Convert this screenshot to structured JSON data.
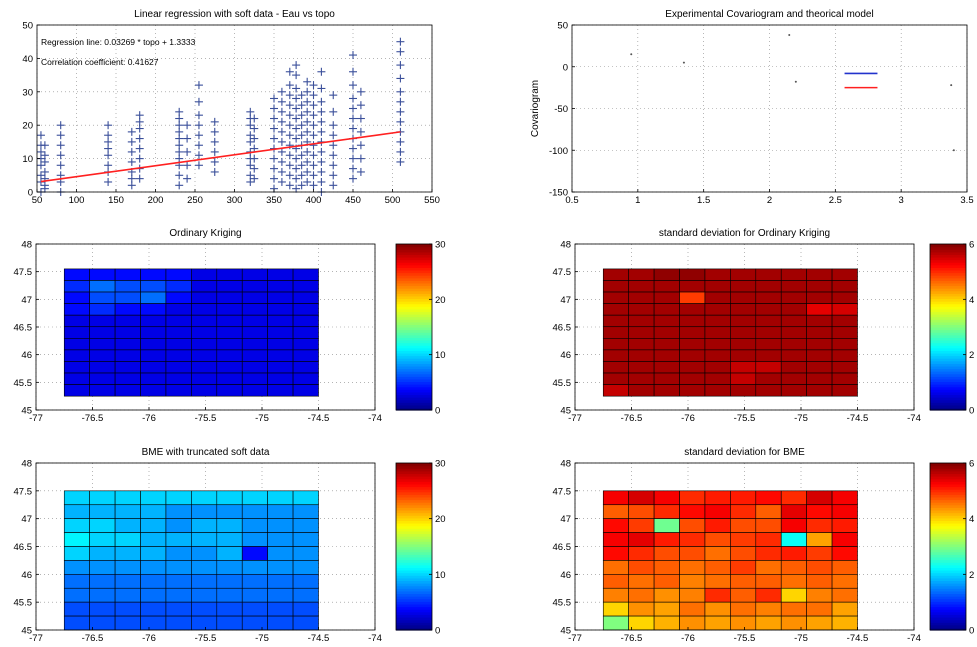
{
  "chart_data": [
    {
      "type": "scatter",
      "title": "Linear regression with soft data - Eau vs topo",
      "annotations": [
        "Regression line: 0.03269 * topo + 1.3333",
        "Correlation coefficient: 0.41627"
      ],
      "xlim": [
        50,
        550
      ],
      "ylim": [
        0,
        50
      ],
      "xticks": [
        50,
        100,
        150,
        200,
        250,
        300,
        350,
        400,
        450,
        500,
        550
      ],
      "yticks": [
        0,
        10,
        20,
        30,
        40,
        50
      ],
      "marker": "+",
      "marker_color": "#3a4f9a",
      "line_color": "#ff2020",
      "regression": {
        "slope": 0.03269,
        "intercept": 1.3333
      },
      "columns": [
        {
          "x": 55,
          "y": [
            0,
            3,
            5,
            8,
            10,
            12,
            14,
            17
          ]
        },
        {
          "x": 60,
          "y": [
            1,
            2,
            4,
            6,
            9,
            11,
            14
          ]
        },
        {
          "x": 80,
          "y": [
            0,
            3,
            5,
            8,
            11,
            14,
            17,
            20
          ]
        },
        {
          "x": 140,
          "y": [
            3,
            6,
            8,
            11,
            13,
            15,
            17,
            20
          ]
        },
        {
          "x": 170,
          "y": [
            2,
            4,
            6,
            9,
            12,
            15,
            18
          ]
        },
        {
          "x": 180,
          "y": [
            4,
            7,
            10,
            13,
            16,
            19,
            21,
            23
          ]
        },
        {
          "x": 230,
          "y": [
            2,
            5,
            8,
            10,
            12,
            14,
            16,
            18,
            20,
            22,
            24
          ]
        },
        {
          "x": 240,
          "y": [
            4,
            8,
            12,
            16,
            20
          ]
        },
        {
          "x": 255,
          "y": [
            8,
            11,
            14,
            17,
            20,
            23,
            27,
            32
          ]
        },
        {
          "x": 275,
          "y": [
            6,
            9,
            12,
            15,
            18,
            21
          ]
        },
        {
          "x": 320,
          "y": [
            3,
            5,
            8,
            10,
            12,
            15,
            17,
            20,
            22,
            24
          ]
        },
        {
          "x": 325,
          "y": [
            4,
            7,
            10,
            13,
            16,
            19,
            22
          ]
        },
        {
          "x": 350,
          "y": [
            1,
            4,
            7,
            10,
            13,
            16,
            19,
            22,
            25,
            28
          ]
        },
        {
          "x": 360,
          "y": [
            3,
            6,
            9,
            12,
            15,
            18,
            21,
            24,
            27,
            30
          ]
        },
        {
          "x": 370,
          "y": [
            2,
            5,
            8,
            11,
            14,
            17,
            20,
            23,
            26,
            29,
            32,
            36
          ]
        },
        {
          "x": 378,
          "y": [
            1,
            4,
            7,
            10,
            13,
            16,
            19,
            22,
            25,
            28,
            31,
            35,
            38
          ]
        },
        {
          "x": 385,
          "y": [
            2,
            5,
            8,
            11,
            14,
            17,
            20,
            23,
            26,
            29
          ]
        },
        {
          "x": 392,
          "y": [
            3,
            6,
            9,
            12,
            15,
            18,
            21,
            24,
            27,
            30,
            33
          ]
        },
        {
          "x": 400,
          "y": [
            2,
            5,
            8,
            11,
            14,
            17,
            20,
            23,
            26,
            29,
            32
          ]
        },
        {
          "x": 410,
          "y": [
            0,
            3,
            6,
            9,
            12,
            15,
            18,
            21,
            24,
            27,
            31,
            36
          ]
        },
        {
          "x": 425,
          "y": [
            2,
            5,
            8,
            11,
            14,
            17,
            20,
            24,
            29
          ]
        },
        {
          "x": 450,
          "y": [
            4,
            7,
            10,
            13,
            16,
            19,
            22,
            25,
            28,
            32,
            36,
            41
          ]
        },
        {
          "x": 460,
          "y": [
            6,
            10,
            14,
            18,
            22,
            26,
            30
          ]
        },
        {
          "x": 510,
          "y": [
            9,
            12,
            15,
            18,
            21,
            24,
            27,
            30,
            34,
            38,
            42,
            45
          ]
        }
      ]
    },
    {
      "type": "scatter",
      "title": "Experimental Covariogram and theorical model",
      "ylabel": "Covariogram",
      "xlim": [
        0.5,
        3.5
      ],
      "ylim": [
        -150,
        50
      ],
      "xticks": [
        "0.5",
        "1",
        "1.5",
        "2",
        "2.5",
        "3",
        "3.5"
      ],
      "yticks": [
        "-150",
        "-100",
        "-50",
        "0",
        "50"
      ],
      "points": [
        [
          0.95,
          15
        ],
        [
          1.35,
          5
        ],
        [
          2.15,
          38
        ],
        [
          2.2,
          -18
        ],
        [
          3.38,
          -22
        ],
        [
          3.4,
          -100
        ]
      ],
      "segments": [
        {
          "x": [
            2.57,
            2.82
          ],
          "y": [
            -8,
            -8
          ],
          "color": "#2233cc"
        },
        {
          "x": [
            2.57,
            2.82
          ],
          "y": [
            -25,
            -25
          ],
          "color": "#ff2020"
        }
      ]
    },
    {
      "type": "heatmap",
      "title": "Ordinary Kriging",
      "xlim": [
        -77,
        -74
      ],
      "ylim": [
        45,
        48
      ],
      "grid_x": [
        -76.75,
        -74.5
      ],
      "grid_y": [
        45.25,
        47.55
      ],
      "xticks": [
        "-77",
        "-76.5",
        "-76",
        "-75.5",
        "-75",
        "-74.5",
        "-74"
      ],
      "yticks": [
        "45",
        "45.5",
        "46",
        "46.5",
        "47",
        "47.5",
        "48"
      ],
      "colorbar": {
        "min": 0,
        "max": 30,
        "ticks": [
          "0",
          "10",
          "20",
          "30"
        ]
      },
      "values": [
        [
          4,
          4,
          4,
          4,
          4,
          3,
          3,
          3,
          3,
          3
        ],
        [
          5,
          7,
          6,
          6,
          5,
          3,
          3,
          3,
          3,
          3
        ],
        [
          4,
          6,
          6,
          7,
          4,
          3,
          3,
          3,
          3,
          3
        ],
        [
          4,
          5,
          4,
          4,
          3,
          3,
          3,
          3,
          3,
          3
        ],
        [
          3,
          3,
          3,
          3,
          3,
          3,
          3,
          3,
          3,
          3
        ],
        [
          3,
          3,
          3,
          3,
          3,
          3,
          3,
          3,
          3,
          3
        ],
        [
          3,
          3,
          3,
          3,
          3,
          3,
          3,
          3,
          3,
          3
        ],
        [
          3,
          3,
          3,
          3,
          3,
          3,
          3,
          3,
          3,
          3
        ],
        [
          3,
          3,
          3,
          3,
          3,
          3,
          3,
          3,
          3,
          3
        ],
        [
          3,
          3,
          3,
          3,
          3,
          3,
          3,
          3,
          3,
          3
        ],
        [
          3,
          3,
          3,
          3,
          3,
          3,
          3,
          3,
          3,
          3
        ]
      ]
    },
    {
      "type": "heatmap",
      "title": "standard deviation for Ordinary Kriging",
      "xlim": [
        -77,
        -74
      ],
      "ylim": [
        45,
        48
      ],
      "grid_x": [
        -76.75,
        -74.5
      ],
      "grid_y": [
        45.25,
        47.55
      ],
      "xticks": [
        "-77",
        "-76.5",
        "-76",
        "-75.5",
        "-75",
        "-74.5",
        "-74"
      ],
      "yticks": [
        "45",
        "45.5",
        "46",
        "46.5",
        "47",
        "47.5",
        "48"
      ],
      "colorbar": {
        "min": 0,
        "max": 6,
        "ticks": [
          "0",
          "2",
          "4",
          "6"
        ]
      },
      "values": [
        [
          5.8,
          5.8,
          5.9,
          5.9,
          5.8,
          5.8,
          5.8,
          5.8,
          5.8,
          5.8
        ],
        [
          5.8,
          5.8,
          5.8,
          5.8,
          5.8,
          5.8,
          5.8,
          5.8,
          5.8,
          5.8
        ],
        [
          5.8,
          5.8,
          5.8,
          4.9,
          5.8,
          5.8,
          5.8,
          5.8,
          5.8,
          5.8
        ],
        [
          5.8,
          5.8,
          5.8,
          5.8,
          5.8,
          5.8,
          5.8,
          5.8,
          5.4,
          5.5
        ],
        [
          5.8,
          5.8,
          5.8,
          5.8,
          5.8,
          5.8,
          5.8,
          5.8,
          5.8,
          5.8
        ],
        [
          5.8,
          5.8,
          5.8,
          5.8,
          5.8,
          5.8,
          5.8,
          5.8,
          5.8,
          5.8
        ],
        [
          5.8,
          5.8,
          5.8,
          5.8,
          5.8,
          5.8,
          5.8,
          5.8,
          5.8,
          5.8
        ],
        [
          5.8,
          5.8,
          5.8,
          5.8,
          5.8,
          5.8,
          5.8,
          5.8,
          5.8,
          5.8
        ],
        [
          5.8,
          5.8,
          5.8,
          5.8,
          5.8,
          5.6,
          5.6,
          5.8,
          5.8,
          5.8
        ],
        [
          5.8,
          5.8,
          5.8,
          5.8,
          5.8,
          5.6,
          5.8,
          5.8,
          5.8,
          5.8
        ],
        [
          5.6,
          5.8,
          5.8,
          5.8,
          5.8,
          5.8,
          5.8,
          5.8,
          5.8,
          5.8
        ]
      ]
    },
    {
      "type": "heatmap",
      "title": "BME with truncated soft data",
      "xlim": [
        -77,
        -74
      ],
      "ylim": [
        45,
        48
      ],
      "grid_x": [
        -76.75,
        -74.5
      ],
      "grid_y": [
        45,
        47.5
      ],
      "xticks": [
        "-77",
        "-76.5",
        "-76",
        "-75.5",
        "-75",
        "-74.5",
        "-74"
      ],
      "yticks": [
        "45",
        "45.5",
        "46",
        "46.5",
        "47",
        "47.5",
        "48"
      ],
      "colorbar": {
        "min": 0,
        "max": 30,
        "ticks": [
          "0",
          "10",
          "20",
          "30"
        ]
      },
      "values": [
        [
          10,
          10,
          10,
          10,
          10,
          10,
          10,
          10,
          10,
          10
        ],
        [
          9,
          9,
          9,
          9,
          8,
          8,
          8,
          8,
          8,
          8
        ],
        [
          10,
          10,
          9,
          9,
          8,
          9,
          9,
          8,
          8,
          8
        ],
        [
          11,
          10,
          10,
          9,
          9,
          9,
          9,
          8,
          8,
          8
        ],
        [
          10,
          9,
          9,
          9,
          8,
          8,
          9,
          4,
          8,
          8
        ],
        [
          8,
          8,
          8,
          8,
          8,
          8,
          8,
          8,
          8,
          8
        ],
        [
          7,
          7,
          7,
          7,
          7,
          7,
          7,
          7,
          7,
          7
        ],
        [
          7,
          7,
          7,
          7,
          7,
          7,
          7,
          7,
          7,
          7
        ],
        [
          6,
          6,
          6,
          6,
          6,
          6,
          6,
          6,
          6,
          6
        ],
        [
          6,
          6,
          6,
          6,
          6,
          6,
          6,
          6,
          6,
          6
        ]
      ]
    },
    {
      "type": "heatmap",
      "title": "standard deviation for BME",
      "xlim": [
        -77,
        -74
      ],
      "ylim": [
        45,
        48
      ],
      "grid_x": [
        -76.75,
        -74.5
      ],
      "grid_y": [
        45,
        47.5
      ],
      "xticks": [
        "-77",
        "-76.5",
        "-76",
        "-75.5",
        "-75",
        "-74.5",
        "-74"
      ],
      "yticks": [
        "45",
        "45.5",
        "46",
        "46.5",
        "47",
        "47.5",
        "48"
      ],
      "colorbar": {
        "min": 0,
        "max": 6,
        "ticks": [
          "0",
          "2",
          "4",
          "6"
        ]
      },
      "values": [
        [
          5.3,
          5.5,
          5.3,
          5.0,
          5.1,
          5.1,
          5.2,
          5.0,
          5.5,
          5.3
        ],
        [
          4.7,
          4.8,
          5.0,
          5.2,
          5.3,
          5.0,
          4.7,
          5.4,
          5.2,
          5.3
        ],
        [
          5.2,
          4.9,
          2.9,
          4.8,
          5.1,
          4.8,
          4.8,
          5.3,
          5.0,
          5.1
        ],
        [
          5.3,
          5.4,
          5.1,
          5.0,
          4.8,
          4.9,
          5.0,
          2.3,
          4.3,
          5.3
        ],
        [
          5.2,
          5.0,
          4.8,
          4.8,
          4.6,
          4.8,
          5.0,
          5.1,
          4.9,
          5.2
        ],
        [
          4.6,
          4.8,
          4.7,
          4.6,
          4.7,
          4.9,
          4.6,
          4.7,
          4.8,
          4.7
        ],
        [
          4.7,
          4.6,
          4.7,
          4.5,
          4.6,
          4.7,
          4.7,
          4.6,
          4.7,
          4.6
        ],
        [
          4.5,
          4.6,
          4.4,
          4.5,
          5.0,
          4.7,
          5.0,
          4.0,
          4.5,
          4.6
        ],
        [
          4.0,
          4.4,
          4.3,
          4.6,
          4.4,
          4.6,
          4.5,
          4.6,
          4.6,
          4.3
        ],
        [
          3.0,
          4.0,
          4.2,
          4.4,
          4.3,
          4.4,
          4.3,
          4.4,
          4.3,
          4.2
        ]
      ]
    }
  ]
}
